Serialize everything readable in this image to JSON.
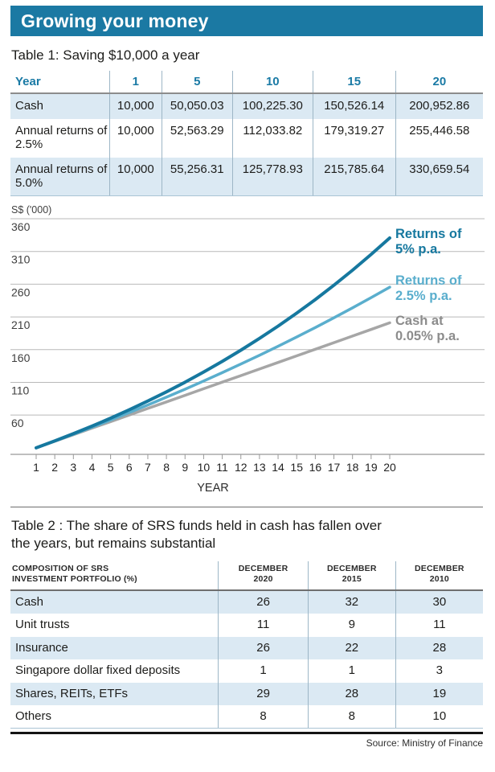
{
  "page": {
    "title_bar": "Growing your money",
    "source": "Source: Ministry of Finance"
  },
  "colors": {
    "accent_teal_bar": "#1b79a3",
    "teal_header_text": "#1a7aa5",
    "row_shade_blue": "#dbe9f3",
    "series_5pct": "#16789f",
    "series_2_5pct": "#5aaecd",
    "series_cash_line": "#a6a6a6",
    "series_cash_label": "#8c8c8c",
    "gridline": "#b9b9b9",
    "axis": "#999999"
  },
  "table1": {
    "title": "Table 1: Saving $10,000 a year",
    "columns": [
      "Year",
      "1",
      "5",
      "10",
      "15",
      "20"
    ],
    "rows": [
      {
        "label": "Cash",
        "values": [
          "10,000",
          "50,050.03",
          "100,225.30",
          "150,526.14",
          "200,952.86"
        ]
      },
      {
        "label": "Annual returns of 2.5%",
        "values": [
          "10,000",
          "52,563.29",
          "112,033.82",
          "179,319.27",
          "255,446.58"
        ]
      },
      {
        "label": "Annual returns of 5.0%",
        "values": [
          "10,000",
          "55,256.31",
          "125,778.93",
          "215,785.64",
          "330,659.54"
        ]
      }
    ]
  },
  "chart_data": {
    "type": "line",
    "ylabel": "S$ ('000)",
    "xlabel": "YEAR",
    "grid": true,
    "legend_position": "right",
    "ylim": [
      0,
      440
    ],
    "yticks": [
      360,
      310,
      260,
      210,
      160,
      110,
      60
    ],
    "x": [
      1,
      2,
      3,
      4,
      5,
      6,
      7,
      8,
      9,
      10,
      11,
      12,
      13,
      14,
      15,
      16,
      17,
      18,
      19,
      20
    ],
    "series": [
      {
        "name": "Returns of 5% p.a.",
        "label_lines": [
          "Returns of",
          "5% p.a."
        ],
        "color": "#16789f",
        "stroke_width": 4,
        "values": [
          10,
          20.5,
          31.53,
          43.1,
          55.26,
          68.02,
          81.42,
          95.49,
          110.27,
          125.78,
          142.07,
          159.17,
          177.13,
          195.99,
          215.79,
          236.58,
          258.4,
          281.32,
          305.39,
          330.66
        ]
      },
      {
        "name": "Returns of 2.5% p.a.",
        "label_lines": [
          "Returns of",
          "2.5% p.a."
        ],
        "color": "#5aaecd",
        "stroke_width": 3.5,
        "values": [
          10,
          20.25,
          30.76,
          41.53,
          52.56,
          63.88,
          75.47,
          87.36,
          99.55,
          112.03,
          124.84,
          137.96,
          151.4,
          165.19,
          179.32,
          193.8,
          208.65,
          223.86,
          239.46,
          255.45
        ]
      },
      {
        "name": "Cash at 0.05% p.a.",
        "label_lines": [
          "Cash at",
          "0.05% p.a."
        ],
        "color": "#a6a6a6",
        "label_color": "#8c8c8c",
        "stroke_width": 3.5,
        "values": [
          10,
          20.01,
          30.02,
          40.03,
          50.05,
          60.08,
          70.11,
          80.14,
          90.18,
          100.23,
          110.28,
          120.33,
          130.39,
          140.46,
          150.53,
          160.6,
          170.68,
          180.77,
          190.86,
          200.95
        ]
      }
    ]
  },
  "table2": {
    "title_lines": [
      "Table 2 : The share of SRS funds held in cash has fallen over",
      "the years, but remains substantial"
    ],
    "header_label_lines": [
      "COMPOSITION OF SRS",
      "INVESTMENT PORTFOLIO (%)"
    ],
    "columns_lines": [
      [
        "DECEMBER",
        "2020"
      ],
      [
        "DECEMBER",
        "2015"
      ],
      [
        "DECEMBER",
        "2010"
      ]
    ],
    "rows": [
      {
        "label": "Cash",
        "values": [
          "26",
          "32",
          "30"
        ]
      },
      {
        "label": "Unit trusts",
        "values": [
          "11",
          "9",
          "11"
        ]
      },
      {
        "label": "Insurance",
        "values": [
          "26",
          "22",
          "28"
        ]
      },
      {
        "label": "Singapore dollar fixed deposits",
        "values": [
          "1",
          "1",
          "3"
        ]
      },
      {
        "label": "Shares, REITs, ETFs",
        "values": [
          "29",
          "28",
          "19"
        ]
      },
      {
        "label": "Others",
        "values": [
          "8",
          "8",
          "10"
        ]
      }
    ]
  }
}
